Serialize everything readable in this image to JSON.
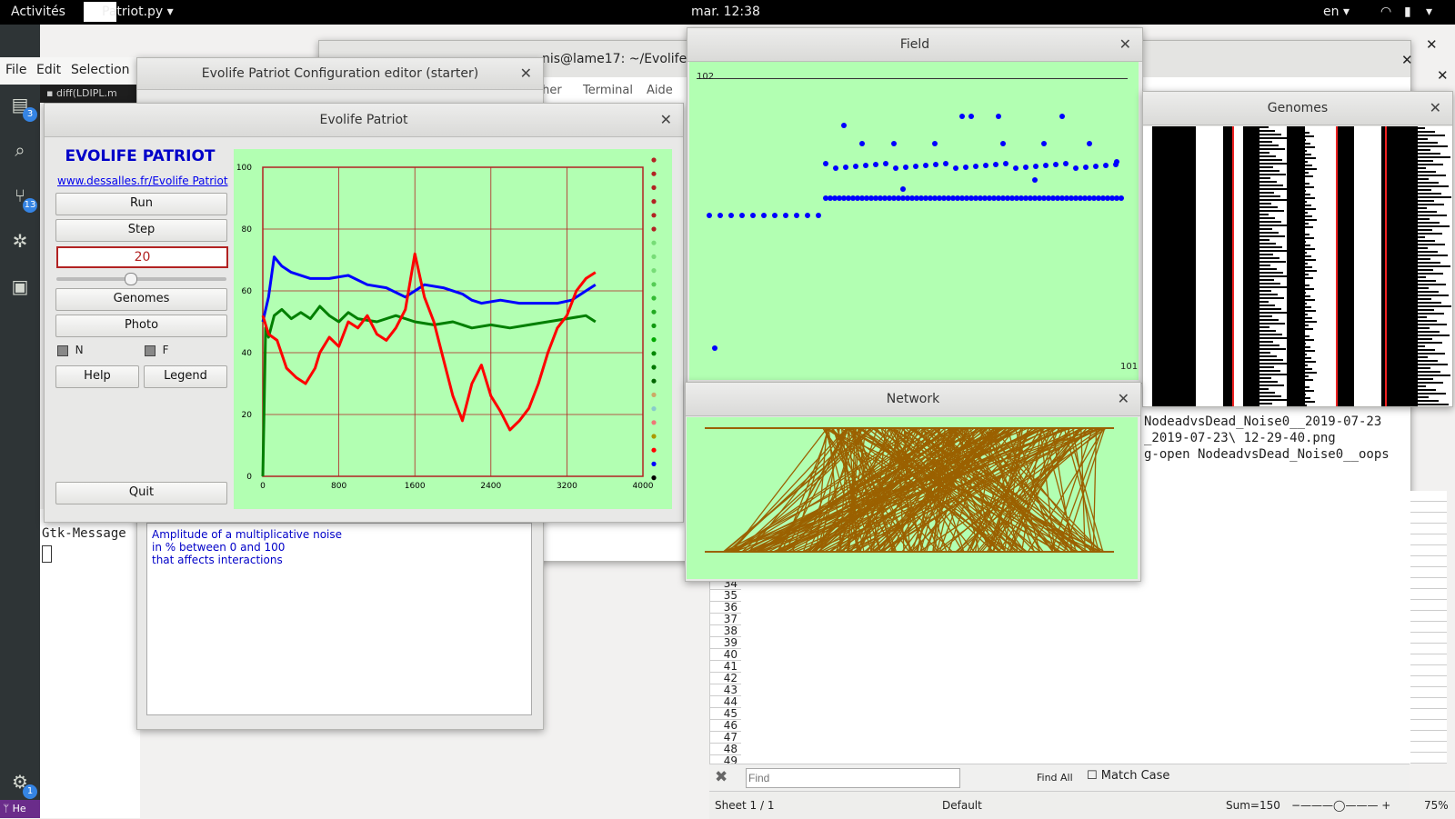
{
  "topbar": {
    "activities": "Activités",
    "app_name": "Patriot.py",
    "clock": "mar. 12:38",
    "lang": "en"
  },
  "dock": {
    "badge_files": "3",
    "badge_git": "13",
    "badge_settings": "1",
    "bottom_label": "He"
  },
  "background": {
    "editor_menu": [
      "File",
      "Edit",
      "Selection"
    ],
    "editor_tab": "diff(LDIPL.m",
    "terminal_title": "nis@lame17: ~/Evolife/",
    "terminal_menu": [
      "cher",
      "Terminal",
      "Aide"
    ],
    "terminal_lines": [
      "NodeadvsDead_Noise0__2019-07-23",
      "_2019-07-23\\ 12-29-40.png",
      "g-open NodeadvsDead_Noise0__oops"
    ],
    "gtk_message": "Gtk-Message",
    "config_title": "Evolife Patriot Configuration editor (starter)",
    "config_help": [
      "Amplitude of a multiplicative noise",
      "in % between 0 and 100",
      "that affects interactions"
    ],
    "row_numbers": [
      "34",
      "35",
      "36",
      "37",
      "38",
      "39",
      "40",
      "41",
      "42",
      "43",
      "44",
      "45",
      "46",
      "47",
      "48",
      "49"
    ],
    "find_placeholder": "Find",
    "find_all": "Find All",
    "match_case": "Match Case",
    "status_sheet": "Sheet 1 / 1",
    "status_style": "Default",
    "status_sum": "Sum=150",
    "status_zoom": "75%"
  },
  "patriot": {
    "title": "Evolife Patriot",
    "heading": "EVOLIFE PATRIOT",
    "link": "www.dessalles.fr/Evolife Patriot",
    "run": "Run",
    "step": "Step",
    "display_value": "20",
    "slider_value": 0.43,
    "genomes": "Genomes",
    "photo": "Photo",
    "check_n": "N",
    "check_f": "F",
    "help": "Help",
    "legend": "Legend",
    "quit": "Quit"
  },
  "field": {
    "title": "Field",
    "top_value": "102",
    "bottom_value": "101"
  },
  "genomes_win": {
    "title": "Genomes"
  },
  "network": {
    "title": "Network"
  },
  "colors": {
    "plot_bg": "#b2ffb2",
    "blue": "#0000ff",
    "red": "#ff0000",
    "green": "#007f00",
    "grid": "#b22222",
    "net": "#9b6100"
  },
  "chart_data": {
    "type": "line",
    "xlim": [
      0,
      4000
    ],
    "ylim": [
      0,
      100
    ],
    "xticks": [
      0,
      800,
      1600,
      2400,
      3200,
      4000
    ],
    "yticks": [
      0,
      20,
      40,
      60,
      80,
      100
    ],
    "grid": true,
    "series": [
      {
        "color": "blue",
        "x": [
          0,
          60,
          120,
          200,
          300,
          500,
          700,
          900,
          1100,
          1300,
          1500,
          1600,
          1700,
          1900,
          2100,
          2200,
          2300,
          2500,
          2700,
          2900,
          3100,
          3250,
          3400,
          3500
        ],
        "values": [
          50,
          58,
          71,
          68,
          66,
          64,
          64,
          65,
          62,
          61,
          58,
          60,
          62,
          61,
          59,
          57,
          56,
          57,
          56,
          56,
          56,
          57,
          60,
          62
        ]
      },
      {
        "color": "green",
        "x": [
          0,
          30,
          60,
          120,
          200,
          300,
          400,
          500,
          600,
          700,
          800,
          900,
          1000,
          1200,
          1400,
          1600,
          1800,
          2000,
          2200,
          2400,
          2600,
          2800,
          3000,
          3200,
          3400,
          3500
        ],
        "values": [
          0,
          48,
          45,
          52,
          54,
          51,
          53,
          51,
          55,
          52,
          50,
          53,
          51,
          50,
          52,
          50,
          49,
          50,
          48,
          49,
          48,
          49,
          50,
          51,
          52,
          50
        ]
      },
      {
        "color": "red",
        "x": [
          0,
          60,
          150,
          250,
          350,
          450,
          550,
          600,
          700,
          800,
          900,
          1000,
          1100,
          1200,
          1300,
          1400,
          1500,
          1600,
          1700,
          1800,
          1900,
          2000,
          2100,
          2200,
          2300,
          2400,
          2500,
          2600,
          2700,
          2800,
          2900,
          3000,
          3100,
          3200,
          3300,
          3400,
          3500
        ],
        "values": [
          52,
          46,
          44,
          35,
          32,
          30,
          35,
          40,
          45,
          42,
          50,
          48,
          52,
          46,
          44,
          48,
          54,
          72,
          58,
          50,
          38,
          26,
          18,
          30,
          36,
          26,
          21,
          15,
          18,
          22,
          30,
          40,
          48,
          52,
          60,
          64,
          66
        ]
      }
    ]
  }
}
